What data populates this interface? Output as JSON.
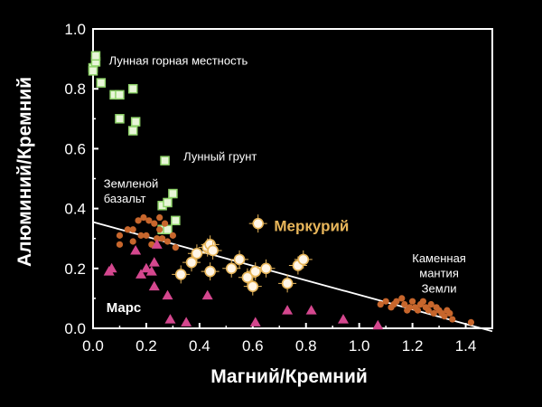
{
  "chart_data": {
    "type": "scatter",
    "xlabel": "Магний/Кремний",
    "ylabel": "Алюминий/Кремний",
    "xlim": [
      0,
      1.5
    ],
    "ylim": [
      0,
      1.0
    ],
    "xticks": [
      "0.0",
      "0.2",
      "0.4",
      "0.6",
      "0.8",
      "1.0",
      "1.2",
      "1.4"
    ],
    "yticks": [
      "0.0",
      "0.2",
      "0.4",
      "0.6",
      "0.8",
      "1.0"
    ],
    "grid": false,
    "series": [
      {
        "name": "Лунная горная местность",
        "marker": "square",
        "color": "#8fd36a",
        "fill": "#e8f6d8",
        "points": [
          [
            0.0,
            0.87
          ],
          [
            0.01,
            0.89
          ],
          [
            0.01,
            0.91
          ],
          [
            0.0,
            0.86
          ],
          [
            0.03,
            0.82
          ],
          [
            0.08,
            0.78
          ],
          [
            0.1,
            0.78
          ],
          [
            0.15,
            0.8
          ],
          [
            0.1,
            0.7
          ],
          [
            0.16,
            0.69
          ],
          [
            0.15,
            0.66
          ]
        ]
      },
      {
        "name": "Лунный грунт",
        "marker": "square",
        "color": "#8fd36a",
        "fill": "#e8f6d8",
        "points": [
          [
            0.27,
            0.56
          ],
          [
            0.3,
            0.45
          ],
          [
            0.26,
            0.41
          ],
          [
            0.28,
            0.42
          ],
          [
            0.31,
            0.36
          ],
          [
            0.26,
            0.33
          ],
          [
            0.28,
            0.33
          ]
        ]
      },
      {
        "name": "Земленой базальт",
        "marker": "circle",
        "color": "#c7662c",
        "fill": "#c7662c",
        "points": [
          [
            0.1,
            0.31
          ],
          [
            0.1,
            0.28
          ],
          [
            0.13,
            0.33
          ],
          [
            0.15,
            0.33
          ],
          [
            0.17,
            0.36
          ],
          [
            0.19,
            0.37
          ],
          [
            0.21,
            0.36
          ],
          [
            0.23,
            0.35
          ],
          [
            0.25,
            0.37
          ],
          [
            0.18,
            0.31
          ],
          [
            0.2,
            0.31
          ],
          [
            0.24,
            0.3
          ],
          [
            0.26,
            0.3
          ],
          [
            0.28,
            0.29
          ],
          [
            0.22,
            0.28
          ],
          [
            0.3,
            0.31
          ],
          [
            0.27,
            0.35
          ],
          [
            0.25,
            0.33
          ],
          [
            0.31,
            0.27
          ],
          [
            0.15,
            0.29
          ]
        ]
      },
      {
        "name": "Каменная мантия Земли",
        "marker": "circle",
        "color": "#c7662c",
        "fill": "#c7662c",
        "points": [
          [
            1.08,
            0.08
          ],
          [
            1.1,
            0.09
          ],
          [
            1.12,
            0.07
          ],
          [
            1.14,
            0.09
          ],
          [
            1.16,
            0.1
          ],
          [
            1.17,
            0.08
          ],
          [
            1.18,
            0.06
          ],
          [
            1.2,
            0.09
          ],
          [
            1.21,
            0.07
          ],
          [
            1.22,
            0.06
          ],
          [
            1.23,
            0.08
          ],
          [
            1.24,
            0.09
          ],
          [
            1.25,
            0.07
          ],
          [
            1.26,
            0.06
          ],
          [
            1.27,
            0.08
          ],
          [
            1.28,
            0.05
          ],
          [
            1.29,
            0.07
          ],
          [
            1.3,
            0.06
          ],
          [
            1.31,
            0.05
          ],
          [
            1.32,
            0.04
          ],
          [
            1.33,
            0.06
          ],
          [
            1.34,
            0.05
          ],
          [
            1.35,
            0.03
          ],
          [
            1.13,
            0.08
          ],
          [
            1.19,
            0.07
          ],
          [
            1.42,
            0.02
          ]
        ]
      },
      {
        "name": "Марс",
        "marker": "triangle",
        "color": "#d4478e",
        "fill": "#d4478e",
        "points": [
          [
            0.06,
            0.19
          ],
          [
            0.07,
            0.2
          ],
          [
            0.16,
            0.26
          ],
          [
            0.18,
            0.18
          ],
          [
            0.2,
            0.2
          ],
          [
            0.22,
            0.19
          ],
          [
            0.23,
            0.22
          ],
          [
            0.24,
            0.28
          ],
          [
            0.23,
            0.14
          ],
          [
            0.28,
            0.11
          ],
          [
            0.29,
            0.03
          ],
          [
            0.35,
            0.02
          ],
          [
            0.43,
            0.11
          ],
          [
            0.61,
            0.02
          ],
          [
            0.73,
            0.06
          ],
          [
            0.82,
            0.06
          ],
          [
            0.94,
            0.03
          ],
          [
            1.07,
            0.01
          ]
        ]
      },
      {
        "name": "Меркурий",
        "marker": "circle",
        "color": "#e8b65a",
        "fill": "#fff6e8",
        "points": [
          [
            0.33,
            0.18
          ],
          [
            0.37,
            0.22
          ],
          [
            0.39,
            0.25
          ],
          [
            0.43,
            0.27
          ],
          [
            0.44,
            0.28
          ],
          [
            0.45,
            0.26
          ],
          [
            0.44,
            0.19
          ],
          [
            0.52,
            0.2
          ],
          [
            0.55,
            0.23
          ],
          [
            0.58,
            0.17
          ],
          [
            0.6,
            0.14
          ],
          [
            0.61,
            0.19
          ],
          [
            0.62,
            0.35
          ],
          [
            0.65,
            0.2
          ],
          [
            0.73,
            0.15
          ],
          [
            0.77,
            0.21
          ],
          [
            0.79,
            0.23
          ]
        ]
      }
    ],
    "trendline": {
      "x": [
        0.0,
        1.5
      ],
      "y": [
        0.355,
        -0.01
      ]
    },
    "annotations": [
      {
        "text": "Лунная горная местность",
        "x": 0.06,
        "y": 0.88,
        "color": "#ffffff",
        "size": 13,
        "weight": "normal",
        "anchor": "start"
      },
      {
        "text": "Лунный грунт",
        "x": 0.34,
        "y": 0.56,
        "color": "#ffffff",
        "size": 13,
        "weight": "normal",
        "anchor": "start"
      },
      {
        "text": "Земленой",
        "x": 0.04,
        "y": 0.47,
        "color": "#ffffff",
        "size": 13,
        "weight": "normal",
        "anchor": "start"
      },
      {
        "text": "базальт",
        "x": 0.04,
        "y": 0.42,
        "color": "#ffffff",
        "size": 13,
        "weight": "normal",
        "anchor": "start"
      },
      {
        "text": "Меркурий",
        "x": 0.68,
        "y": 0.325,
        "color": "#e8b65a",
        "size": 17,
        "weight": "bold",
        "anchor": "start"
      },
      {
        "text": "Каменная",
        "x": 1.3,
        "y": 0.22,
        "color": "#ffffff",
        "size": 13,
        "weight": "normal",
        "anchor": "middle"
      },
      {
        "text": "мантия",
        "x": 1.3,
        "y": 0.17,
        "color": "#ffffff",
        "size": 13,
        "weight": "normal",
        "anchor": "middle"
      },
      {
        "text": "Земли",
        "x": 1.3,
        "y": 0.12,
        "color": "#ffffff",
        "size": 13,
        "weight": "normal",
        "anchor": "middle"
      },
      {
        "text": "Марс",
        "x": 0.05,
        "y": 0.055,
        "color": "#ffffff",
        "size": 15,
        "weight": "bold",
        "anchor": "start"
      }
    ]
  }
}
